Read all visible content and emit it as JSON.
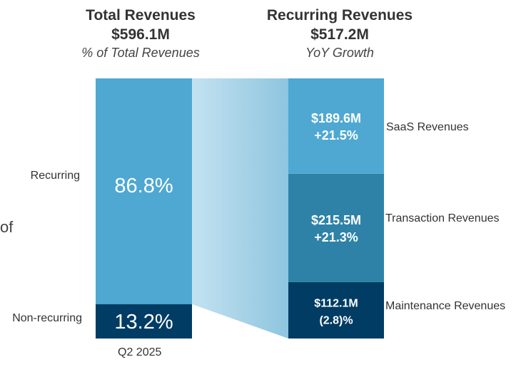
{
  "colors": {
    "recurring": "#4ea8d2",
    "non_recurring": "#003c64",
    "saas": "#4ea8d2",
    "transaction": "#2e82a8",
    "maintenance": "#003c64",
    "connector_light": "#c3e2f0",
    "connector_dark": "#8ec5df"
  },
  "left_heading": {
    "title": "Total Revenues",
    "amount": "$596.1M",
    "subtitle": "% of Total Revenues"
  },
  "right_heading": {
    "title": "Recurring Revenues",
    "amount": "$517.2M",
    "subtitle": "YoY Growth"
  },
  "cut_text": "of",
  "chart_data": [
    {
      "type": "bar",
      "stacked": true,
      "title": "Total Revenues",
      "categories": [
        "Q2 2025"
      ],
      "total": 596.1,
      "unit": "$M",
      "series": [
        {
          "name": "Non-recurring",
          "values": [
            13.2
          ],
          "label": "13.2%"
        },
        {
          "name": "Recurring",
          "values": [
            86.8
          ],
          "label": "86.8%"
        }
      ],
      "ylim": [
        0,
        100
      ]
    },
    {
      "type": "bar",
      "stacked": true,
      "title": "Recurring Revenues",
      "total": 517.2,
      "unit": "$M",
      "series": [
        {
          "name": "Maintenance Revenues",
          "values": [
            112.1
          ],
          "amount_label": "$112.1M",
          "growth_label": "(2.8)%"
        },
        {
          "name": "Transaction Revenues",
          "values": [
            215.5
          ],
          "amount_label": "$215.5M",
          "growth_label": "+21.3%"
        },
        {
          "name": "SaaS Revenues",
          "values": [
            189.6
          ],
          "amount_label": "$189.6M",
          "growth_label": "+21.5%"
        }
      ]
    }
  ]
}
